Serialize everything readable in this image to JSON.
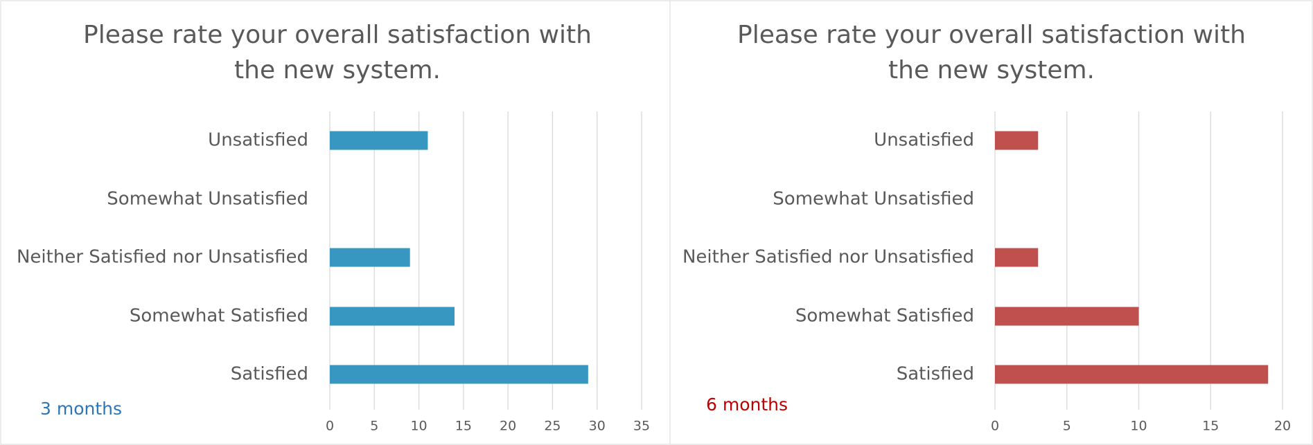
{
  "chart_data": [
    {
      "type": "bar",
      "orientation": "horizontal",
      "title": [
        "Please rate your overall satisfaction with",
        "the new system."
      ],
      "categories": [
        "Unsatisfied",
        "Somewhat Unsatisfied",
        "Neither Satisfied nor Unsatisfied",
        "Somewhat Satisfied",
        "Satisfied"
      ],
      "values": [
        11,
        0,
        9,
        14,
        29
      ],
      "color": "#3797c0",
      "xlim": [
        0,
        35
      ],
      "xticks": [
        0,
        5,
        10,
        15,
        20,
        25,
        30,
        35
      ],
      "grid": true,
      "annotation": "3 months",
      "annotation_color": "#2e75b6"
    },
    {
      "type": "bar",
      "orientation": "horizontal",
      "title": [
        "Please rate your overall satisfaction with",
        "the new system."
      ],
      "categories": [
        "Unsatisfied",
        "Somewhat Unsatisfied",
        "Neither Satisfied nor Unsatisfied",
        "Somewhat Satisfied",
        "Satisfied"
      ],
      "values": [
        3,
        0,
        3,
        10,
        19
      ],
      "color": "#c0504d",
      "xlim": [
        0,
        20
      ],
      "xticks": [
        0,
        5,
        10,
        15,
        20
      ],
      "grid": true,
      "annotation": "6 months",
      "annotation_color": "#c00000"
    }
  ]
}
